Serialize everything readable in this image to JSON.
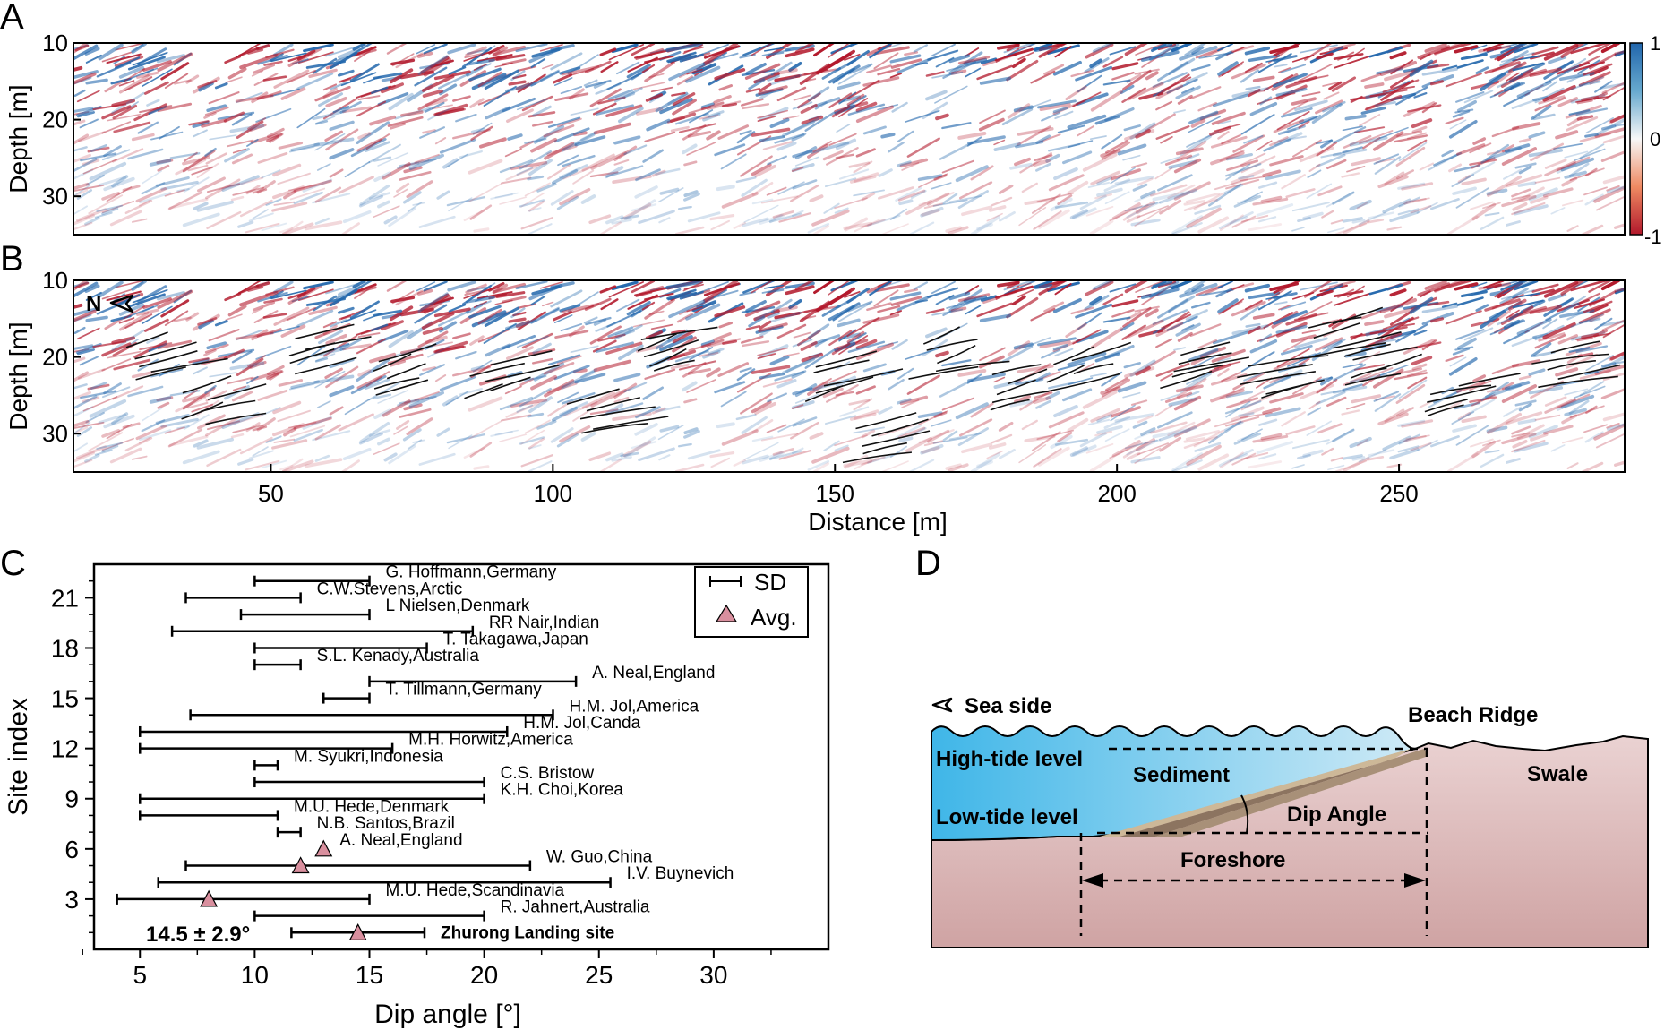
{
  "panels": {
    "A": {
      "label": "A",
      "ylabel": "Depth [m]",
      "ylim": [
        10,
        35
      ],
      "yticks": [
        "10",
        "20",
        "30"
      ],
      "colorbar_ticks": [
        "1",
        "0",
        "-1"
      ],
      "colormap": [
        "#b2182b",
        "#ffffff",
        "#2166ac"
      ]
    },
    "B": {
      "label": "B",
      "ylabel": "Depth [m]",
      "yticks": [
        "10",
        "20",
        "30"
      ],
      "north_label": "N",
      "xlabel": "Distance [m]",
      "xlim": [
        15,
        290
      ],
      "xticks": [
        "50",
        "100",
        "150",
        "200",
        "250"
      ]
    },
    "C": {
      "label": "C",
      "legend": {
        "sd_label": "SD",
        "avg_label": "Avg."
      },
      "avg_annotation": "14.5 ± 2.9°",
      "marker_color": "#d98f9e"
    },
    "D": {
      "label": "D",
      "sea_side": "Sea side",
      "beach_ridge": "Beach Ridge",
      "high_tide": "High-tide level",
      "sediment": "Sediment",
      "swale": "Swale",
      "low_tide": "Low-tide level",
      "dip_angle": "Dip Angle",
      "foreshore": "Foreshore",
      "colors": {
        "water": "#5dbfe6",
        "ground": "#d9aaaa",
        "sediment": "#8c7460"
      }
    }
  },
  "chart_data": [
    {
      "type": "heatmap",
      "panel": "A",
      "ylabel": "Depth [m]",
      "ylim": [
        10,
        35
      ],
      "xlim": [
        15,
        290
      ],
      "colorbar_range": [
        -1,
        1
      ]
    },
    {
      "type": "heatmap",
      "panel": "B",
      "ylabel": "Depth [m]",
      "xlabel": "Distance [m]",
      "ylim": [
        10,
        35
      ],
      "xlim": [
        15,
        290
      ]
    },
    {
      "type": "scatter",
      "panel": "C",
      "xlabel": "Dip angle [°]",
      "ylabel": "Site index",
      "xlim": [
        3,
        35
      ],
      "ylim": [
        0,
        23
      ],
      "xticks": [
        "5",
        "10",
        "15",
        "20",
        "25",
        "30"
      ],
      "yticks": [
        "3",
        "6",
        "9",
        "12",
        "15",
        "18",
        "21"
      ],
      "sites": [
        {
          "idx": 22,
          "label": "G. Hoffmann,Germany",
          "low": 10,
          "high": 15,
          "avg": null
        },
        {
          "idx": 21,
          "label": "C.W.Stevens,Arctic",
          "low": 7,
          "high": 12,
          "avg": null
        },
        {
          "idx": 20,
          "label": "L Nielsen,Denmark",
          "low": 9.4,
          "high": 15,
          "avg": null
        },
        {
          "idx": 19,
          "label": "RR Nair,Indian",
          "low": 6.4,
          "high": 19.5,
          "avg": null
        },
        {
          "idx": 18,
          "label": "T. Takagawa,Japan",
          "low": 10,
          "high": 17.5,
          "avg": null
        },
        {
          "idx": 17,
          "label": "S.L. Kenady,Australia",
          "low": 10,
          "high": 12,
          "avg": null
        },
        {
          "idx": 16,
          "label": "A. Neal,England",
          "low": 15,
          "high": 24,
          "avg": null
        },
        {
          "idx": 15,
          "label": "T. Tillmann,Germany",
          "low": 13,
          "high": 15,
          "avg": null
        },
        {
          "idx": 14,
          "label": "H.M. Jol,America",
          "low": 7.2,
          "high": 23,
          "avg": null
        },
        {
          "idx": 13,
          "label": "H.M. Jol,Canda",
          "low": 5,
          "high": 21,
          "avg": null
        },
        {
          "idx": 12,
          "label": "M.H. Horwitz,America",
          "low": 5,
          "high": 16,
          "avg": null
        },
        {
          "idx": 11,
          "label": "M. Syukri,Indonesia",
          "low": 10,
          "high": 11,
          "avg": null
        },
        {
          "idx": 10,
          "label": "C.S. Bristow",
          "low": 10,
          "high": 20,
          "avg": null
        },
        {
          "idx": 9,
          "label": "K.H. Choi,Korea",
          "low": 5,
          "high": 20,
          "avg": null
        },
        {
          "idx": 8,
          "label": "M.U. Hede,Denmark",
          "low": 5,
          "high": 11,
          "avg": null
        },
        {
          "idx": 7,
          "label": "N.B. Santos,Brazil",
          "low": 11,
          "high": 12,
          "avg": null
        },
        {
          "idx": 6,
          "label": "A. Neal,England",
          "low": null,
          "high": null,
          "avg": 13
        },
        {
          "idx": 5,
          "label": "W. Guo,China",
          "low": 7,
          "high": 22,
          "avg": 12
        },
        {
          "idx": 4,
          "label": "I.V. Buynevich",
          "low": 5.8,
          "high": 25.5,
          "avg": null
        },
        {
          "idx": 3,
          "label": "M.U. Hede,Scandinavia",
          "low": 4,
          "high": 15,
          "avg": 8
        },
        {
          "idx": 2,
          "label": "R. Jahnert,Australia",
          "low": 10,
          "high": 20,
          "avg": null
        },
        {
          "idx": 1,
          "label": "Zhurong Landing site",
          "low": 11.6,
          "high": 17.4,
          "avg": 14.5,
          "bold": true
        }
      ]
    }
  ]
}
